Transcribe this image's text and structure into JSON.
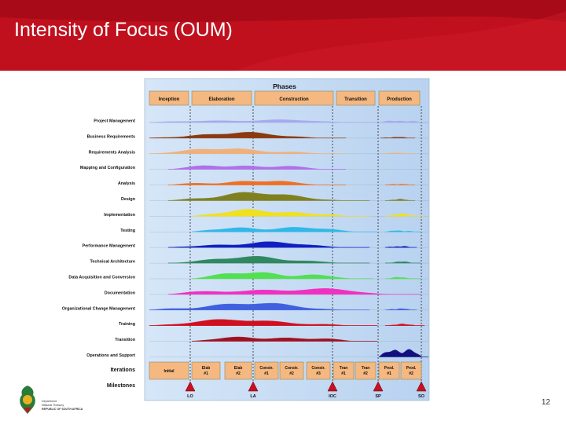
{
  "slide": {
    "title": "Intensity of Focus (OUM)",
    "page_number": "12"
  },
  "diagram": {
    "phases_title": "Phases",
    "phases": [
      "Inception",
      "Elaboration",
      "Construction",
      "Transition",
      "Production"
    ],
    "disciplines": [
      {
        "label": "Project Management",
        "color": "#a8a8f0"
      },
      {
        "label": "Business Requirements",
        "color": "#8b3a10"
      },
      {
        "label": "Requirements Analysis",
        "color": "#f0b07a"
      },
      {
        "label": "Mapping and Configuration",
        "color": "#b070e8"
      },
      {
        "label": "Analysis",
        "color": "#f07020"
      },
      {
        "label": "Design",
        "color": "#808020"
      },
      {
        "label": "Implementation",
        "color": "#f0e020"
      },
      {
        "label": "Testing",
        "color": "#30b8e8"
      },
      {
        "label": "Performance Management",
        "color": "#1020c0"
      },
      {
        "label": "Technical Architecture",
        "color": "#308860"
      },
      {
        "label": "Data Acquisition and Conversion",
        "color": "#50e050"
      },
      {
        "label": "Documentation",
        "color": "#f030c0"
      },
      {
        "label": "Organizational Change Management",
        "color": "#4060e0"
      },
      {
        "label": "Training",
        "color": "#d01020"
      },
      {
        "label": "Transition",
        "color": "#a01020"
      },
      {
        "label": "Operations and Support",
        "color": "#101080"
      }
    ],
    "iterations_label": "Iterations",
    "iterations": [
      {
        "l1": "Initial",
        "l2": ""
      },
      {
        "l1": "Elab",
        "l2": "#1"
      },
      {
        "l1": "Elab",
        "l2": "#2"
      },
      {
        "l1": "Constr.",
        "l2": "#1"
      },
      {
        "l1": "Constr.",
        "l2": "#2"
      },
      {
        "l1": "Constr.",
        "l2": "#3"
      },
      {
        "l1": "Tran",
        "l2": "#1"
      },
      {
        "l1": "Tran",
        "l2": "#2"
      },
      {
        "l1": "Prod.",
        "l2": "#1"
      },
      {
        "l1": "Prod.",
        "l2": "#2"
      }
    ],
    "milestones_label": "Milestones",
    "milestones": [
      "LO",
      "LA",
      "IOC",
      "SP",
      "SO"
    ]
  },
  "logo": {
    "line1": "Department:",
    "line2": "National Treasury",
    "line3": "REPUBLIC OF SOUTH AFRICA"
  },
  "colors": {
    "header_red": "#c0101e",
    "chart_bg": "#c8dcf4",
    "phase_box": "#f4b880",
    "milestone": "#c81020"
  }
}
